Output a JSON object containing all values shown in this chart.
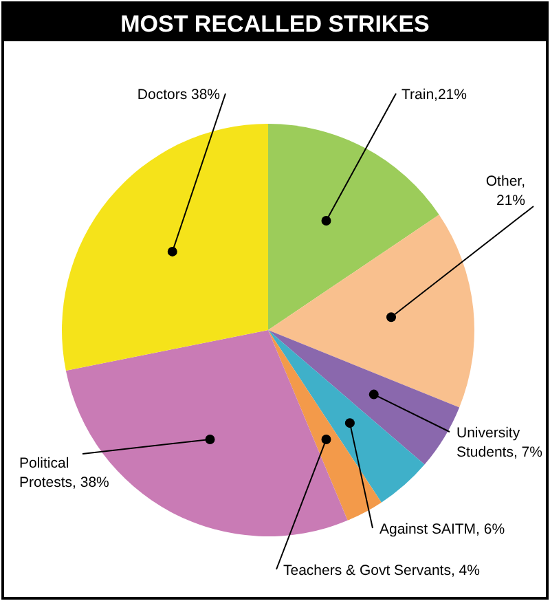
{
  "chart_data": {
    "type": "pie",
    "title": "MOST RECALLED STRIKES",
    "categories": [
      "Train,21%",
      "Other,\n21%",
      "University\nStudents, 7%",
      "Against SAITM, 6%",
      "Teachers & Govt Servants, 4%",
      "Political\nProtests, 38%",
      "Doctors 38%"
    ],
    "values": [
      21,
      21,
      7,
      6,
      4,
      38,
      38
    ],
    "colors": [
      "#9ccc5a",
      "#f9c08e",
      "#8a68ad",
      "#3fb0c9",
      "#f39a4a",
      "#c97bb5",
      "#f5e31a"
    ]
  }
}
